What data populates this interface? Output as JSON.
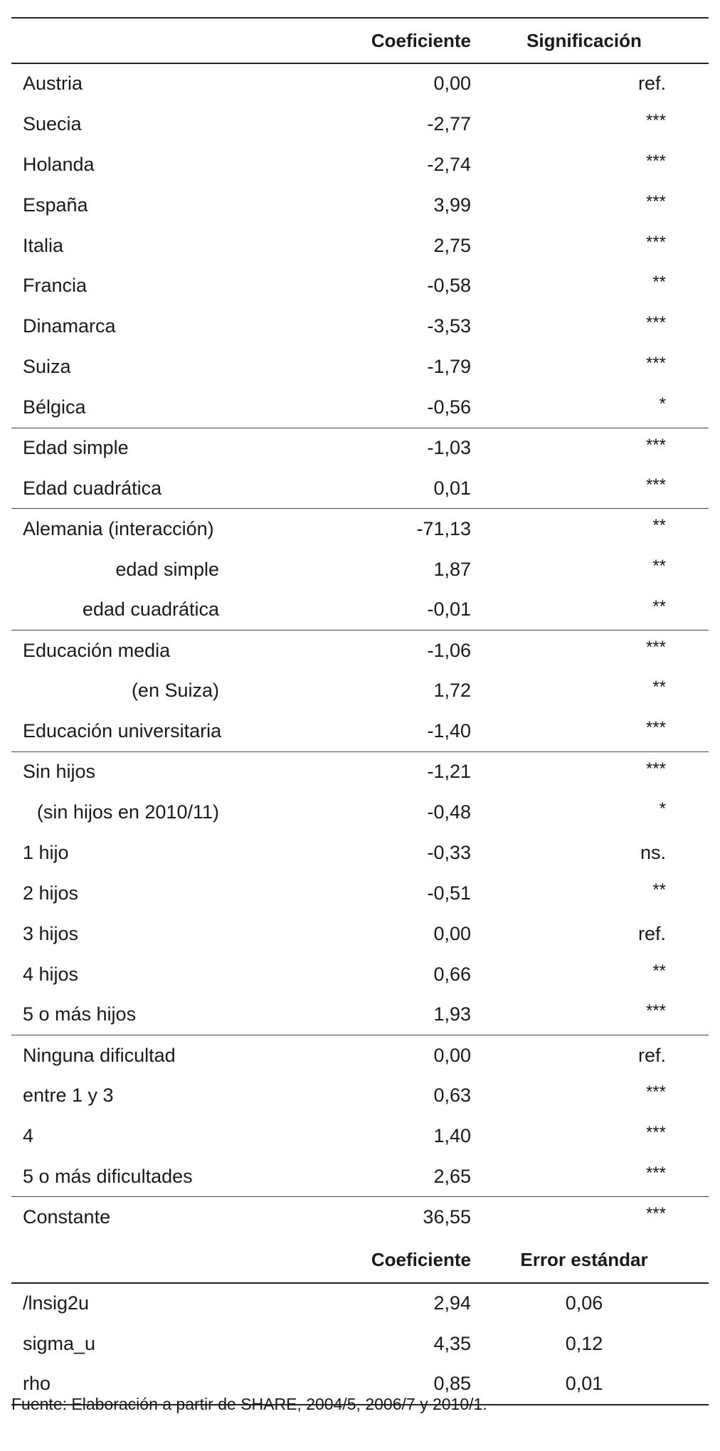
{
  "table1": {
    "header": {
      "label": "",
      "coef": "Coeficiente",
      "sig": "Significación"
    },
    "rows": [
      {
        "label": "Austria",
        "coef": "0,00",
        "sig": "ref.",
        "sub": false,
        "sep": false
      },
      {
        "label": "Suecia",
        "coef": "-2,77",
        "sig": "***",
        "sub": false,
        "sep": false
      },
      {
        "label": "Holanda",
        "coef": "-2,74",
        "sig": "***",
        "sub": false,
        "sep": false
      },
      {
        "label": "España",
        "coef": "3,99",
        "sig": "***",
        "sub": false,
        "sep": false
      },
      {
        "label": "Italia",
        "coef": "2,75",
        "sig": "***",
        "sub": false,
        "sep": false
      },
      {
        "label": "Francia",
        "coef": "-0,58",
        "sig": "**",
        "sub": false,
        "sep": false
      },
      {
        "label": "Dinamarca",
        "coef": "-3,53",
        "sig": "***",
        "sub": false,
        "sep": false
      },
      {
        "label": "Suiza",
        "coef": "-1,79",
        "sig": "***",
        "sub": false,
        "sep": false
      },
      {
        "label": "Bélgica",
        "coef": "-0,56",
        "sig": "*",
        "sub": false,
        "sep": false
      },
      {
        "label": "Edad simple",
        "coef": "-1,03",
        "sig": "***",
        "sub": false,
        "sep": true
      },
      {
        "label": "Edad cuadrática",
        "coef": "0,01",
        "sig": "***",
        "sub": false,
        "sep": false
      },
      {
        "label": "Alemania (interacción)",
        "coef": "-71,13",
        "sig": "**",
        "sub": false,
        "sep": true
      },
      {
        "label": "edad simple",
        "coef": "1,87",
        "sig": "**",
        "sub": true,
        "sep": false
      },
      {
        "label": "edad cuadrática",
        "coef": "-0,01",
        "sig": "**",
        "sub": true,
        "sep": false
      },
      {
        "label": "Educación media",
        "coef": "-1,06",
        "sig": "***",
        "sub": false,
        "sep": true
      },
      {
        "label": "(en Suiza)",
        "coef": "1,72",
        "sig": "**",
        "sub": true,
        "sep": false
      },
      {
        "label": "Educación universitaria",
        "coef": "-1,40",
        "sig": "***",
        "sub": false,
        "sep": false
      },
      {
        "label": "Sin hijos",
        "coef": "-1,21",
        "sig": "***",
        "sub": false,
        "sep": true
      },
      {
        "label": "(sin hijos en 2010/11)",
        "coef": "-0,48",
        "sig": "*",
        "sub": true,
        "sep": false
      },
      {
        "label": "1 hijo",
        "coef": "-0,33",
        "sig": "ns.",
        "sub": false,
        "sep": false
      },
      {
        "label": "2 hijos",
        "coef": "-0,51",
        "sig": "**",
        "sub": false,
        "sep": false
      },
      {
        "label": "3 hijos",
        "coef": "0,00",
        "sig": "ref.",
        "sub": false,
        "sep": false
      },
      {
        "label": "4 hijos",
        "coef": "0,66",
        "sig": "**",
        "sub": false,
        "sep": false
      },
      {
        "label": "5 o más hijos",
        "coef": "1,93",
        "sig": "***",
        "sub": false,
        "sep": false
      },
      {
        "label": "Ninguna dificultad",
        "coef": "0,00",
        "sig": "ref.",
        "sub": false,
        "sep": true
      },
      {
        "label": "entre 1 y 3",
        "coef": "0,63",
        "sig": "***",
        "sub": false,
        "sep": false
      },
      {
        "label": "4",
        "coef": "1,40",
        "sig": "***",
        "sub": false,
        "sep": false
      },
      {
        "label": "5 o más dificultades",
        "coef": "2,65",
        "sig": "***",
        "sub": false,
        "sep": false
      },
      {
        "label": "Constante",
        "coef": "36,55",
        "sig": "***",
        "sub": false,
        "sep": true
      }
    ]
  },
  "table2": {
    "header": {
      "label": "",
      "coef": "Coeficiente",
      "err": "Error estándar"
    },
    "rows": [
      {
        "label": "/lnsig2u",
        "coef": "2,94",
        "err": "0,06"
      },
      {
        "label": "sigma_u",
        "coef": "4,35",
        "err": "0,12"
      },
      {
        "label": "rho",
        "coef": "0,85",
        "err": "0,01"
      }
    ]
  },
  "source": "Fuente: Elaboración a partir de SHARE, 2004/5, 2006/7 y 2010/1."
}
